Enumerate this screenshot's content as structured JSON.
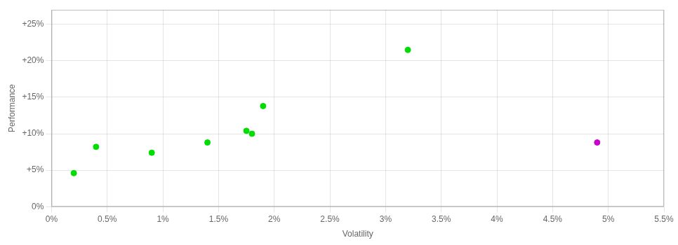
{
  "chart_data": {
    "type": "scatter",
    "x_label": "Volatility",
    "y_label": "Performance",
    "xlim": [
      0,
      0.055
    ],
    "ylim": [
      0,
      0.27
    ],
    "xticks": [
      {
        "value": 0,
        "label": "0%"
      },
      {
        "value": 0.005,
        "label": "0.5%"
      },
      {
        "value": 0.01,
        "label": "1%"
      },
      {
        "value": 0.015,
        "label": "1.5%"
      },
      {
        "value": 0.02,
        "label": "2%"
      },
      {
        "value": 0.025,
        "label": "2.5%"
      },
      {
        "value": 0.03,
        "label": "3%"
      },
      {
        "value": 0.035,
        "label": "3.5%"
      },
      {
        "value": 0.04,
        "label": "4%"
      },
      {
        "value": 0.045,
        "label": "4.5%"
      },
      {
        "value": 0.05,
        "label": "5%"
      },
      {
        "value": 0.055,
        "label": "5.5%"
      }
    ],
    "yticks": [
      {
        "value": 0,
        "label": "0%"
      },
      {
        "value": 0.05,
        "label": "+5%"
      },
      {
        "value": 0.1,
        "label": "+10%"
      },
      {
        "value": 0.15,
        "label": "+15%"
      },
      {
        "value": 0.2,
        "label": "+20%"
      },
      {
        "value": 0.25,
        "label": "+25%"
      }
    ],
    "grid": true,
    "series": [
      {
        "color": "#00dd00",
        "x": [
          0.002,
          0.004,
          0.009,
          0.014,
          0.0175,
          0.018,
          0.019,
          0.032
        ],
        "values": [
          0.046,
          0.082,
          0.074,
          0.088,
          0.104,
          0.1,
          0.138,
          0.215
        ]
      },
      {
        "color": "#cc00cc",
        "x": [
          0.049
        ],
        "values": [
          0.088
        ]
      }
    ]
  }
}
